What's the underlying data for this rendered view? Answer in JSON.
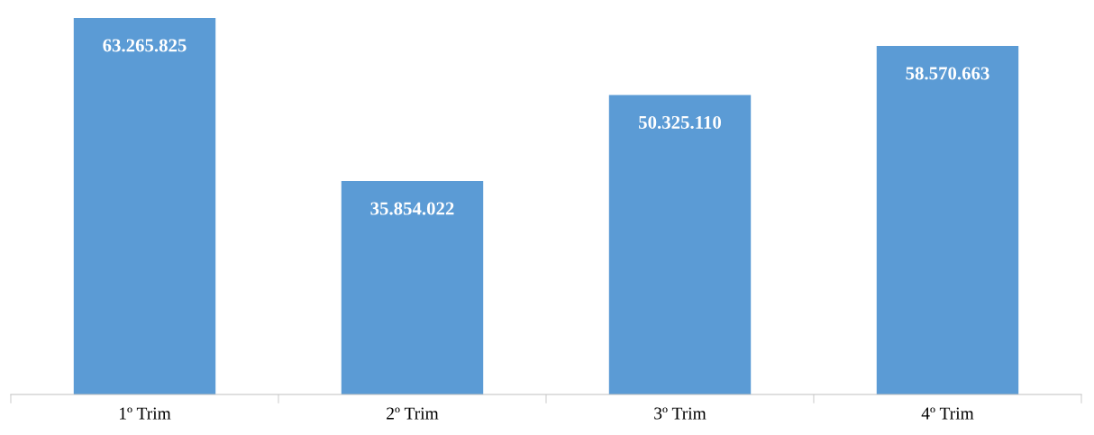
{
  "chart_data": {
    "type": "bar",
    "categories": [
      "1º Trim",
      "2º Trim",
      "3º Trim",
      "4º Trim"
    ],
    "values": [
      63265825,
      35854022,
      50325110,
      58570663
    ],
    "value_labels": [
      "63.265.825",
      "35.854.022",
      "50.325.110",
      "58.570.663"
    ],
    "color": "#5b9bd5",
    "grid": false,
    "legend": false
  }
}
